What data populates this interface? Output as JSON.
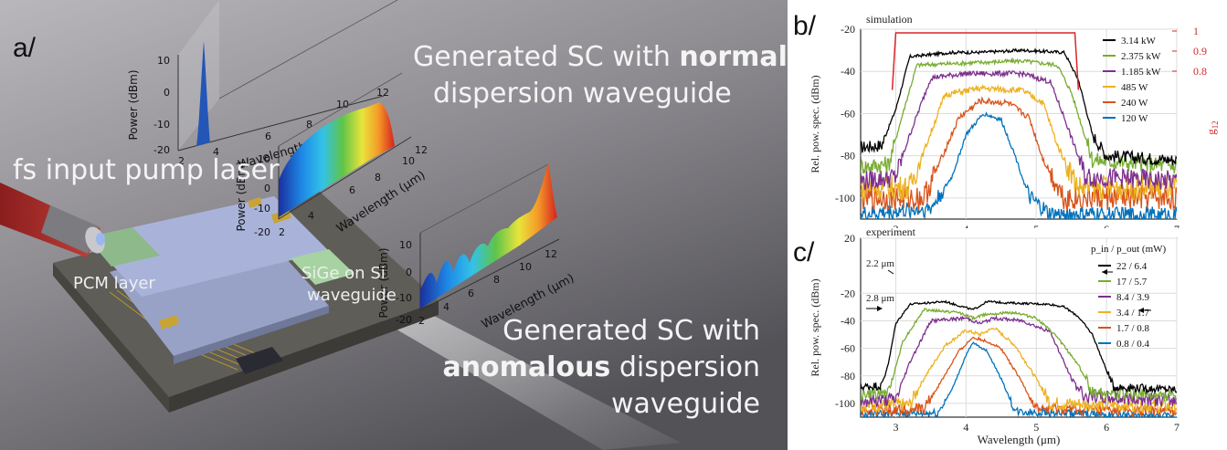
{
  "panel_a": {
    "label": "a/",
    "caption_normal": {
      "prefix": "Generated SC with ",
      "bold": "normal",
      "line2": "dispersion waveguide"
    },
    "caption_anomalous": {
      "line1": "Generated SC with",
      "bold": "anomalous",
      "suffix": " dispersion",
      "line3": "waveguide"
    },
    "label_pump": "fs input pump laser",
    "label_pcm": "PCM layer",
    "label_sige_line1": "SiGe on Si",
    "label_sige_line2": "waveguide",
    "inset_ylabel": "Power (dBm)",
    "inset_ylabel_unit_note": "",
    "inset_xlabel": "Wavelength (μm)",
    "inset_pump": {
      "y_ticks": [
        "10",
        "0",
        "-10",
        "-20"
      ],
      "x_ticks": [
        "2",
        "4",
        "6",
        "8",
        "10",
        "12"
      ]
    },
    "inset_normal": {
      "y_ticks": [
        "10",
        "0",
        "-10",
        "-20"
      ],
      "x_ticks": [
        "2",
        "4",
        "6",
        "8",
        "10",
        "12"
      ]
    },
    "inset_anomalous": {
      "y_ticks": [
        "10",
        "0",
        "-10",
        "-20"
      ],
      "x_ticks": [
        "2",
        "4",
        "6",
        "8",
        "10",
        "12"
      ]
    }
  },
  "panels": {
    "b_label": "b/",
    "c_label": "c/"
  },
  "chart_data": [
    {
      "id": "b",
      "type": "line",
      "title": "simulation",
      "xlabel": "",
      "ylabel": "Rel. pow. spec. (dBm)",
      "y2label": "g12",
      "xlim": [
        2.5,
        7
      ],
      "ylim": [
        -110,
        -20
      ],
      "x_ticks": [
        "3",
        "4",
        "5",
        "6",
        "7"
      ],
      "y_ticks": [
        "-20",
        "-40",
        "-60",
        "-80",
        "-100"
      ],
      "y2_ticks": [
        "1",
        "0.9",
        "0.8"
      ],
      "grid": true,
      "legend_position": "top-right",
      "coherence_curve": {
        "x": [
          2.95,
          3.0,
          5.55,
          5.6
        ],
        "y_level": 1
      },
      "series": [
        {
          "name": "3.14 kW",
          "color": "#000000",
          "x": [
            2.5,
            2.8,
            3.0,
            3.2,
            3.8,
            4.2,
            4.8,
            5.4,
            5.6,
            5.8,
            6.0,
            7.0
          ],
          "y": [
            -76,
            -75,
            -58,
            -33,
            -31,
            -31,
            -30,
            -31,
            -44,
            -70,
            -80,
            -82
          ],
          "noise": 3
        },
        {
          "name": "2.375 kW",
          "color": "#77ac30",
          "x": [
            2.5,
            2.9,
            3.1,
            3.3,
            4.0,
            4.8,
            5.3,
            5.5,
            5.8,
            7.0
          ],
          "y": [
            -85,
            -84,
            -60,
            -37,
            -36,
            -35,
            -37,
            -50,
            -82,
            -85
          ],
          "noise": 4
        },
        {
          "name": "1.185 kW",
          "color": "#7e2f8e",
          "x": [
            2.5,
            3.0,
            3.2,
            3.5,
            4.0,
            4.8,
            5.2,
            5.4,
            5.7,
            7.0
          ],
          "y": [
            -92,
            -90,
            -70,
            -43,
            -41,
            -41,
            -45,
            -62,
            -90,
            -92
          ],
          "noise": 5
        },
        {
          "name": "485 W",
          "color": "#edb120",
          "x": [
            2.5,
            3.2,
            3.4,
            3.7,
            4.2,
            4.8,
            5.1,
            5.3,
            5.6,
            7.0
          ],
          "y": [
            -95,
            -95,
            -78,
            -51,
            -48,
            -49,
            -55,
            -75,
            -95,
            -95
          ],
          "noise": 6
        },
        {
          "name": "240 W",
          "color": "#d95319",
          "x": [
            2.5,
            3.4,
            3.6,
            3.9,
            4.2,
            4.6,
            4.9,
            5.1,
            5.4,
            7.0
          ],
          "y": [
            -100,
            -100,
            -85,
            -62,
            -54,
            -55,
            -62,
            -82,
            -100,
            -100
          ],
          "noise": 6
        },
        {
          "name": "120 W",
          "color": "#0072bd",
          "x": [
            2.5,
            3.5,
            3.8,
            4.0,
            4.25,
            4.5,
            4.7,
            4.9,
            5.2,
            7.0
          ],
          "y": [
            -108,
            -105,
            -90,
            -70,
            -60,
            -63,
            -80,
            -100,
            -108,
            -108
          ],
          "noise": 4
        }
      ]
    },
    {
      "id": "c",
      "type": "line",
      "title": "experiment",
      "xlabel": "Wavelength (μm)",
      "ylabel": "Rel. pow. spec. (dBm)",
      "xlim": [
        2.5,
        7
      ],
      "ylim": [
        -110,
        20
      ],
      "x_ticks": [
        "3",
        "4",
        "5",
        "6",
        "7"
      ],
      "y_ticks": [
        "20",
        "-20",
        "-40",
        "-60",
        "-80",
        "-100"
      ],
      "grid": true,
      "legend_position": "top-right",
      "legend_title": "p_in / p_out (mW)",
      "annotations": [
        "2.2 μm",
        "2.8 μm"
      ],
      "series": [
        {
          "name": "22 / 6.4",
          "color": "#000000",
          "x": [
            2.5,
            2.8,
            2.9,
            3.0,
            3.2,
            3.7,
            4.1,
            4.3,
            4.6,
            5.2,
            5.4,
            5.6,
            5.8,
            6.0,
            6.1,
            7.0
          ],
          "y": [
            -88,
            -87,
            -70,
            -42,
            -28,
            -26,
            -32,
            -26,
            -27,
            -28,
            -30,
            -37,
            -50,
            -76,
            -88,
            -90
          ],
          "noise": 3
        },
        {
          "name": "17 / 5.7",
          "color": "#77ac30",
          "x": [
            2.5,
            2.9,
            3.1,
            3.4,
            3.9,
            4.1,
            4.3,
            4.7,
            5.0,
            5.3,
            5.6,
            5.8,
            7.0
          ],
          "y": [
            -94,
            -92,
            -55,
            -32,
            -34,
            -38,
            -35,
            -34,
            -38,
            -52,
            -72,
            -92,
            -95
          ],
          "noise": 4
        },
        {
          "name": "8.4 / 3.9",
          "color": "#7e2f8e",
          "x": [
            2.5,
            3.0,
            3.2,
            3.5,
            4.0,
            4.2,
            4.4,
            4.8,
            5.2,
            5.5,
            5.7,
            7.0
          ],
          "y": [
            -98,
            -97,
            -70,
            -40,
            -38,
            -42,
            -38,
            -40,
            -48,
            -82,
            -95,
            -98
          ],
          "noise": 5
        },
        {
          "name": "3.4 / 1.7",
          "color": "#edb120",
          "x": [
            2.5,
            3.2,
            3.4,
            3.7,
            4.0,
            4.2,
            4.4,
            4.7,
            5.0,
            5.2,
            7.0
          ],
          "y": [
            -102,
            -101,
            -82,
            -58,
            -47,
            -50,
            -45,
            -58,
            -82,
            -100,
            -102
          ],
          "noise": 5
        },
        {
          "name": "1.7 / 0.8",
          "color": "#d95319",
          "x": [
            2.5,
            3.4,
            3.6,
            3.9,
            4.1,
            4.3,
            4.5,
            4.8,
            5.0,
            7.0
          ],
          "y": [
            -105,
            -104,
            -88,
            -62,
            -52,
            -55,
            -60,
            -85,
            -104,
            -106
          ],
          "noise": 4
        },
        {
          "name": "0.8 / 0.4",
          "color": "#0072bd",
          "x": [
            2.5,
            3.6,
            3.8,
            4.0,
            4.1,
            4.3,
            4.5,
            4.7,
            7.0
          ],
          "y": [
            -108,
            -107,
            -90,
            -65,
            -56,
            -62,
            -82,
            -106,
            -110
          ],
          "noise": 3
        }
      ]
    }
  ]
}
